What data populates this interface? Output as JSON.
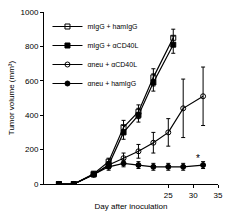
{
  "chart_data": {
    "type": "line",
    "x_label": "Day after inoculation",
    "y_label": "Tumor volume (mm³)",
    "xlim": [
      0,
      35
    ],
    "xticks": [
      25,
      30,
      35
    ],
    "ylim": [
      0,
      1000
    ],
    "yticks": [
      0,
      200,
      400,
      600,
      800,
      1000
    ],
    "grid": false,
    "legend": "top-left",
    "annotations": [
      {
        "text": "*",
        "x": 31,
        "y": 150
      }
    ],
    "series": [
      {
        "name": "mIgG + hamIgG",
        "color": "#000000",
        "marker": "square-open",
        "x": [
          3,
          6,
          10,
          13,
          16,
          19,
          22,
          26
        ],
        "values": [
          0,
          0,
          60,
          130,
          330,
          420,
          620,
          850
        ],
        "errors": [
          0,
          0,
          10,
          20,
          40,
          40,
          50,
          50
        ]
      },
      {
        "name": "mIgG + αCD40L",
        "color": "#000000",
        "marker": "square",
        "x": [
          3,
          6,
          10,
          13,
          16,
          19,
          22,
          26
        ],
        "values": [
          0,
          0,
          55,
          110,
          300,
          400,
          590,
          810
        ],
        "errors": [
          0,
          0,
          10,
          20,
          40,
          40,
          50,
          50
        ]
      },
      {
        "name": "αneu + αCD40L",
        "color": "#000000",
        "marker": "circle-open",
        "x": [
          3,
          6,
          10,
          13,
          16,
          19,
          22,
          25,
          28,
          32
        ],
        "values": [
          0,
          0,
          55,
          110,
          150,
          190,
          240,
          300,
          440,
          510
        ],
        "errors": [
          0,
          0,
          10,
          20,
          30,
          40,
          60,
          80,
          170,
          170
        ]
      },
      {
        "name": "αneu + hamIgG",
        "color": "#000000",
        "marker": "circle",
        "x": [
          3,
          6,
          10,
          13,
          16,
          19,
          22,
          25,
          28,
          32
        ],
        "values": [
          0,
          0,
          55,
          100,
          120,
          110,
          100,
          100,
          100,
          110
        ],
        "errors": [
          0,
          0,
          10,
          20,
          20,
          20,
          20,
          20,
          20,
          20
        ]
      }
    ]
  }
}
